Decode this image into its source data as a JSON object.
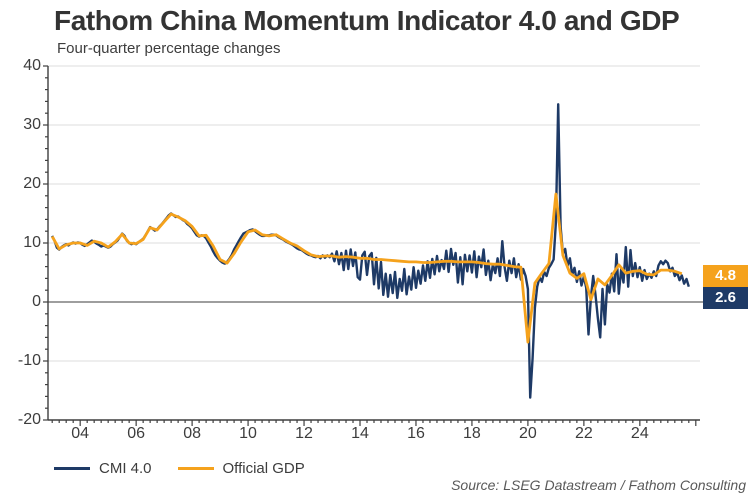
{
  "title": "Fathom China Momentum Indicator 4.0 and GDP",
  "subtitle": "Four-quarter percentage changes",
  "source": "Source: LSEG Datastream / Fathom Consulting",
  "colors": {
    "cmi_navy": "#1e3a66",
    "gdp_orange": "#f5a21c",
    "gridline": "#dcdcdc",
    "zero_line": "#7f7f7f",
    "axis": "#3f3f3f",
    "text": "#3d3d3d",
    "badge_text": "#ffffff"
  },
  "legend": [
    {
      "label": "CMI 4.0",
      "color": "#1e3a66"
    },
    {
      "label": "Official GDP",
      "color": "#f5a21c"
    }
  ],
  "end_labels": [
    {
      "series": "Official GDP",
      "value": "4.8",
      "color": "#f5a21c"
    },
    {
      "series": "CMI 4.0",
      "value": "2.6",
      "color": "#1e3a66"
    }
  ],
  "chart_data": {
    "type": "line",
    "title": "Fathom China Momentum Indicator 4.0 and GDP",
    "subtitle": "Four-quarter percentage changes",
    "xlabel": "",
    "ylabel": "Four-quarter percentage change",
    "xlim": [
      2002.85,
      2026.15
    ],
    "ylim": [
      -20,
      40
    ],
    "grid": "horizontal",
    "legend_position": "bottom-left",
    "y_ticks": [
      40,
      30,
      20,
      10,
      0,
      -10,
      -20
    ],
    "y_tick_labels": [
      "40",
      "30",
      "20",
      "10",
      "0",
      "-10",
      "-20"
    ],
    "y_gridlines": [
      40,
      30,
      20,
      10,
      -10
    ],
    "y_minor_tick_step": 2,
    "x_tick_years": [
      2004,
      2006,
      2008,
      2010,
      2012,
      2014,
      2016,
      2018,
      2020,
      2022,
      2024
    ],
    "x_tick_labels": [
      "04",
      "06",
      "08",
      "10",
      "12",
      "14",
      "16",
      "18",
      "20",
      "22",
      "24"
    ],
    "x_minor_tick_step": 0.25,
    "series": [
      {
        "name": "CMI 4.0",
        "color": "#1e3a66",
        "start": 2003.0,
        "step_months": 1,
        "end_value": 2.6,
        "values": [
          11.2,
          10.4,
          9.2,
          8.9,
          9.3,
          9.6,
          9.8,
          9.6,
          9.9,
          10.1,
          9.9,
          10.1,
          10.0,
          9.7,
          9.5,
          9.8,
          10.1,
          10.4,
          10.2,
          9.9,
          9.7,
          9.4,
          9.6,
          9.4,
          9.2,
          9.4,
          9.8,
          10.1,
          10.4,
          11.0,
          11.6,
          11.2,
          10.4,
          10.0,
          9.8,
          10.0,
          9.8,
          10.1,
          10.4,
          10.7,
          11.3,
          12.0,
          12.7,
          12.4,
          12.1,
          12.3,
          12.8,
          13.2,
          13.7,
          14.2,
          14.7,
          15.0,
          14.7,
          14.4,
          14.5,
          14.2,
          13.9,
          13.7,
          13.2,
          12.9,
          12.5,
          11.9,
          11.3,
          11.1,
          11.3,
          11.2,
          10.8,
          10.1,
          9.4,
          8.6,
          7.9,
          7.4,
          7.0,
          6.7,
          6.5,
          6.8,
          7.3,
          8.0,
          8.9,
          9.6,
          10.3,
          11.0,
          11.6,
          11.8,
          12.0,
          12.2,
          12.3,
          12.0,
          11.7,
          11.4,
          11.2,
          11.2,
          11.3,
          11.3,
          11.4,
          11.4,
          11.3,
          11.0,
          10.8,
          10.6,
          10.3,
          10.1,
          9.9,
          9.7,
          9.4,
          9.1,
          8.9,
          8.8,
          8.5,
          8.2,
          8.0,
          7.9,
          7.7,
          7.6,
          7.8,
          7.4,
          7.9,
          7.5,
          7.9,
          7.6,
          8.2,
          6.9,
          8.6,
          6.4,
          8.3,
          5.4,
          8.7,
          5.6,
          8.9,
          6.1,
          8.4,
          4.2,
          3.8,
          7.9,
          8.5,
          4.6,
          7.8,
          8.3,
          3.0,
          7.5,
          2.3,
          6.8,
          1.2,
          4.8,
          0.9,
          4.6,
          1.5,
          5.1,
          0.7,
          3.9,
          1.9,
          5.6,
          1.3,
          4.3,
          2.1,
          5.9,
          2.4,
          5.3,
          3.1,
          6.2,
          3.6,
          6.9,
          4.1,
          7.3,
          4.7,
          7.8,
          5.2,
          7.1,
          5.6,
          8.7,
          5.1,
          9.0,
          6.3,
          8.3,
          3.3,
          7.6,
          3.0,
          8.0,
          5.2,
          7.9,
          5.0,
          8.6,
          4.2,
          7.7,
          5.9,
          8.9,
          4.6,
          7.0,
          3.7,
          6.4,
          4.9,
          7.4,
          4.4,
          10.3,
          5.9,
          3.6,
          7.0,
          4.9,
          7.4,
          4.2,
          6.4,
          3.8,
          5.6,
          4.4,
          2.2,
          -16.2,
          -9.5,
          -1.0,
          2.6,
          4.2,
          3.4,
          5.1,
          4.4,
          5.8,
          6.4,
          7.2,
          13.5,
          33.5,
          12.8,
          8.2,
          9.0,
          6.1,
          7.4,
          4.6,
          5.8,
          3.4,
          5.2,
          2.8,
          4.3,
          2.4,
          -5.5,
          0.8,
          4.4,
          1.2,
          -2.8,
          -6.0,
          2.2,
          -3.8,
          3.0,
          1.6,
          4.8,
          1.8,
          8.1,
          1.4,
          5.6,
          3.3,
          9.3,
          2.6,
          8.8,
          4.4,
          6.6,
          4.2,
          5.9,
          3.6,
          5.4,
          3.9,
          4.8,
          4.1,
          5.2,
          4.4,
          6.2,
          6.9,
          6.4,
          7.0,
          6.6,
          5.2,
          5.8,
          4.4,
          5.0,
          3.7,
          4.5,
          3.1,
          3.9,
          2.6
        ]
      },
      {
        "name": "Official GDP",
        "color": "#f5a21c",
        "start": 2003.0,
        "step_months": 3,
        "end_value": 4.8,
        "values": [
          11.1,
          9.0,
          9.7,
          10.0,
          10.0,
          9.6,
          10.3,
          10.0,
          9.3,
          10.2,
          11.5,
          10.0,
          9.9,
          10.6,
          12.6,
          12.2,
          13.6,
          14.9,
          14.4,
          13.8,
          12.8,
          11.2,
          11.3,
          9.5,
          7.2,
          6.6,
          8.2,
          10.2,
          11.9,
          12.2,
          11.4,
          11.2,
          11.4,
          10.7,
          10.0,
          9.5,
          8.7,
          8.0,
          7.7,
          7.8,
          7.8,
          7.6,
          7.7,
          7.6,
          7.4,
          7.4,
          7.2,
          7.2,
          7.1,
          7.0,
          6.9,
          6.8,
          6.8,
          6.7,
          6.7,
          6.8,
          6.9,
          6.9,
          6.8,
          6.8,
          6.8,
          6.7,
          6.5,
          6.4,
          6.4,
          6.2,
          6.0,
          5.9,
          -6.8,
          3.2,
          4.9,
          6.5,
          18.3,
          7.9,
          4.9,
          4.0,
          4.8,
          0.4,
          3.9,
          2.9,
          4.5,
          6.3,
          4.9,
          5.2,
          5.3,
          4.7,
          4.6,
          5.4,
          5.4,
          5.2,
          4.8
        ]
      }
    ]
  }
}
